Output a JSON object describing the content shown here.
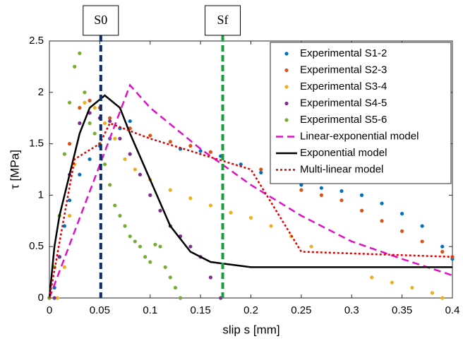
{
  "chart_data": {
    "type": "line",
    "xlabel": "slip s [mm]",
    "ylabel": "τ [MPa]",
    "xlim": [
      0,
      0.4
    ],
    "ylim": [
      0,
      2.5
    ],
    "xticks": [
      0,
      0.05,
      0.1,
      0.15,
      0.2,
      0.25,
      0.3,
      0.35,
      0.4
    ],
    "yticks": [
      0,
      0.5,
      1,
      1.5,
      2,
      2.5
    ],
    "grid": false,
    "legend": "upper right",
    "annotations": [
      {
        "label": "S0",
        "x": 0.051,
        "color": "#0d2b6e"
      },
      {
        "label": "Sf",
        "x": 0.172,
        "color": "#1f9a3f"
      }
    ],
    "series": [
      {
        "name": "Experimental S1-2",
        "color": "#0072bd",
        "mode": "markers",
        "x": [
          0,
          0.005,
          0.01,
          0.015,
          0.02,
          0.03,
          0.04,
          0.05,
          0.06,
          0.07,
          0.08,
          0.13,
          0.15,
          0.17,
          0.19,
          0.21,
          0.23,
          0.25,
          0.27,
          0.29,
          0.31,
          0.33,
          0.35,
          0.37,
          0.39,
          0.4
        ],
        "values": [
          0,
          0.1,
          0.4,
          0.7,
          0.95,
          1.2,
          1.35,
          1.48,
          1.55,
          1.65,
          1.72,
          1.45,
          1.43,
          1.38,
          1.3,
          1.22,
          1.15,
          1.1,
          1.07,
          1.04,
          1.0,
          0.92,
          0.82,
          0.7,
          0.5,
          0.38
        ]
      },
      {
        "name": "Experimental S2-3",
        "color": "#d95319",
        "mode": "markers",
        "x": [
          0,
          0.005,
          0.01,
          0.02,
          0.03,
          0.04,
          0.05,
          0.06,
          0.08,
          0.1,
          0.12,
          0.14,
          0.16,
          0.21,
          0.23,
          0.25,
          0.27,
          0.29,
          0.31,
          0.33,
          0.35,
          0.37,
          0.39,
          0.4
        ],
        "values": [
          0,
          0.3,
          0.8,
          1.5,
          1.85,
          1.92,
          1.85,
          1.75,
          1.65,
          1.58,
          1.52,
          1.48,
          1.42,
          1.25,
          1.15,
          1.05,
          1.0,
          0.95,
          0.85,
          0.75,
          0.65,
          0.55,
          0.45,
          0.4
        ]
      },
      {
        "name": "Experimental S3-4",
        "color": "#edb120",
        "mode": "markers",
        "x": [
          0.008,
          0.015,
          0.02,
          0.025,
          0.03,
          0.035,
          0.045,
          0.055,
          0.065,
          0.075,
          0.085,
          0.1,
          0.12,
          0.14,
          0.16,
          0.18,
          0.2,
          0.22,
          0.24,
          0.26,
          0.32,
          0.34,
          0.36,
          0.38,
          0.39
        ],
        "values": [
          0,
          0.3,
          0.8,
          1.3,
          1.7,
          1.9,
          1.85,
          1.7,
          1.55,
          1.35,
          1.25,
          1.15,
          1.05,
          0.97,
          0.9,
          0.83,
          0.78,
          0.7,
          0.6,
          0.5,
          0.2,
          0.15,
          0.1,
          0.05,
          0
        ]
      },
      {
        "name": "Experimental S4-5",
        "color": "#7e2f8e",
        "mode": "markers",
        "x": [
          0.005,
          0.01,
          0.02,
          0.03,
          0.04,
          0.05,
          0.06,
          0.07,
          0.08,
          0.09,
          0.1,
          0.11,
          0.12,
          0.13,
          0.14,
          0.15,
          0.16,
          0.17
        ],
        "values": [
          0,
          0.4,
          1.2,
          1.7,
          1.8,
          1.75,
          1.72,
          1.55,
          1.4,
          1.2,
          1.0,
          0.85,
          0.7,
          0.6,
          0.5,
          0.4,
          0.2,
          0
        ]
      },
      {
        "name": "Experimental S5-6",
        "color": "#77ac30",
        "mode": "markers",
        "x": [
          0,
          0.005,
          0.01,
          0.015,
          0.02,
          0.025,
          0.03,
          0.035,
          0.04,
          0.045,
          0.05,
          0.055,
          0.06,
          0.065,
          0.07,
          0.075,
          0.08,
          0.085,
          0.09,
          0.095,
          0.1,
          0.105,
          0.11,
          0.115,
          0.12,
          0.125,
          0.13
        ],
        "values": [
          0,
          0.3,
          0.8,
          1.4,
          1.9,
          2.25,
          2.38,
          2.0,
          1.7,
          1.6,
          1.5,
          1.3,
          1.1,
          0.9,
          0.8,
          0.7,
          0.6,
          0.55,
          0.5,
          0.4,
          0.35,
          0.52,
          0.5,
          0.3,
          0.2,
          0.1,
          0
        ]
      },
      {
        "name": "Linear-exponential model",
        "color": "#e010c8",
        "mode": "line",
        "dash": "10,6",
        "x": [
          0,
          0.08,
          0.1,
          0.15,
          0.2,
          0.25,
          0.3,
          0.35,
          0.4
        ],
        "values": [
          0,
          2.07,
          1.85,
          1.45,
          1.1,
          0.8,
          0.55,
          0.38,
          0.22
        ]
      },
      {
        "name": "Exponential model",
        "color": "#000000",
        "mode": "line",
        "dash": "none",
        "x": [
          0,
          0.005,
          0.01,
          0.02,
          0.03,
          0.04,
          0.055,
          0.07,
          0.08,
          0.1,
          0.12,
          0.14,
          0.16,
          0.2,
          0.4
        ],
        "values": [
          0,
          0.5,
          0.8,
          1.2,
          1.6,
          1.85,
          1.97,
          1.85,
          1.6,
          1.15,
          0.7,
          0.45,
          0.35,
          0.3,
          0.3
        ]
      },
      {
        "name": "Multi-linear model",
        "color": "#e00000",
        "mode": "line",
        "dash": "3,3",
        "x": [
          0,
          0.025,
          0.05,
          0.06,
          0.1,
          0.2,
          0.25,
          0.4
        ],
        "values": [
          0,
          1.35,
          1.5,
          1.7,
          1.55,
          1.25,
          0.45,
          0.4
        ]
      }
    ]
  }
}
